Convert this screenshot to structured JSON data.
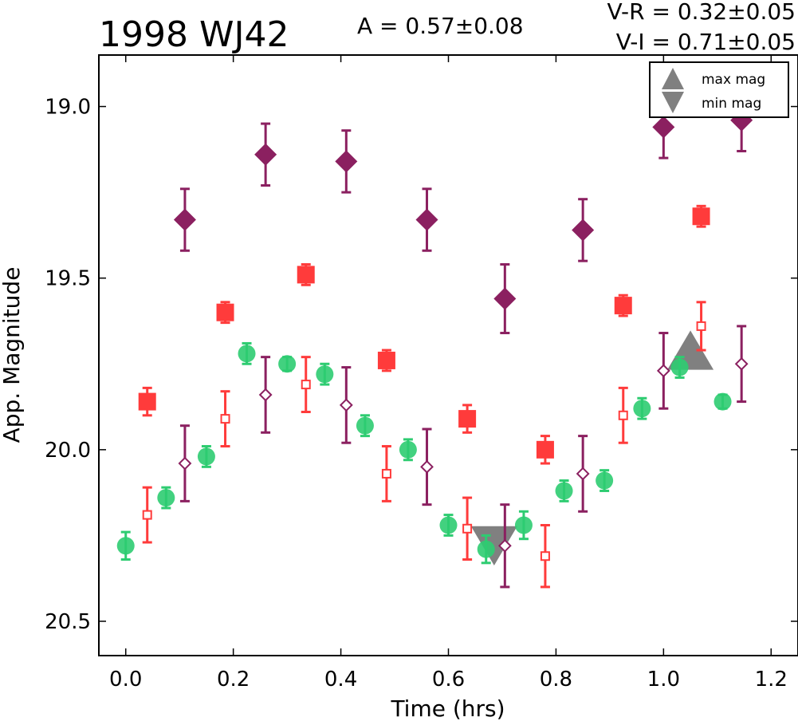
{
  "chart_data": {
    "type": "scatter",
    "title": "1998 WJ42",
    "amplitude_text": "A  = 0.57±0.08",
    "color_index_text": [
      "V-R = 0.32±0.05",
      "V-I  = 0.71±0.05"
    ],
    "xlabel": "Time (hrs)",
    "ylabel": "App. Magnitude",
    "xlim": [
      -0.05,
      1.25
    ],
    "ylim": [
      20.6,
      18.85
    ],
    "y_inverted": true,
    "xticks": [
      0.0,
      0.2,
      0.4,
      0.6,
      0.8,
      1.0,
      1.2
    ],
    "xtick_labels": [
      "0.0",
      "0.2",
      "0.4",
      "0.6",
      "0.8",
      "1.0",
      "1.2"
    ],
    "yticks": [
      19.0,
      19.5,
      20.0,
      20.5
    ],
    "ytick_labels": [
      "19.0",
      "19.5",
      "20.0",
      "20.5"
    ],
    "grid": false,
    "legend": {
      "placement": "top-right",
      "entries": [
        {
          "label": "max mag",
          "marker": "triangle-up",
          "color": "#808080"
        },
        {
          "label": "min mag",
          "marker": "triangle-down",
          "color": "#808080"
        }
      ]
    },
    "series": [
      {
        "marker": "circle",
        "filled": true,
        "color": "#2ecc71",
        "points": [
          {
            "x": 0.0,
            "y": 20.28,
            "err": 0.04
          },
          {
            "x": 0.075,
            "y": 20.14,
            "err": 0.03
          },
          {
            "x": 0.15,
            "y": 20.02,
            "err": 0.03
          },
          {
            "x": 0.225,
            "y": 19.72,
            "err": 0.03
          },
          {
            "x": 0.3,
            "y": 19.75,
            "err": 0.02
          },
          {
            "x": 0.37,
            "y": 19.78,
            "err": 0.03
          },
          {
            "x": 0.445,
            "y": 19.93,
            "err": 0.03
          },
          {
            "x": 0.525,
            "y": 20.0,
            "err": 0.03
          },
          {
            "x": 0.6,
            "y": 20.22,
            "err": 0.03
          },
          {
            "x": 0.67,
            "y": 20.29,
            "err": 0.04
          },
          {
            "x": 0.74,
            "y": 20.22,
            "err": 0.04
          },
          {
            "x": 0.815,
            "y": 20.12,
            "err": 0.03
          },
          {
            "x": 0.89,
            "y": 20.09,
            "err": 0.03
          },
          {
            "x": 0.96,
            "y": 19.88,
            "err": 0.03
          },
          {
            "x": 1.03,
            "y": 19.76,
            "err": 0.03
          },
          {
            "x": 1.11,
            "y": 19.86,
            "err": 0.02
          }
        ]
      },
      {
        "marker": "square",
        "filled": true,
        "color": "#ff3b3b",
        "points": [
          {
            "x": 0.04,
            "y": 19.86,
            "err": 0.04
          },
          {
            "x": 0.185,
            "y": 19.6,
            "err": 0.03
          },
          {
            "x": 0.335,
            "y": 19.49,
            "err": 0.03
          },
          {
            "x": 0.485,
            "y": 19.74,
            "err": 0.03
          },
          {
            "x": 0.635,
            "y": 19.91,
            "err": 0.04
          },
          {
            "x": 0.78,
            "y": 20.0,
            "err": 0.04
          },
          {
            "x": 0.925,
            "y": 19.58,
            "err": 0.03
          },
          {
            "x": 1.07,
            "y": 19.32,
            "err": 0.03
          }
        ]
      },
      {
        "marker": "square",
        "filled": false,
        "color": "#ff3b3b",
        "points": [
          {
            "x": 0.04,
            "y": 20.19,
            "err": 0.08
          },
          {
            "x": 0.185,
            "y": 19.91,
            "err": 0.08
          },
          {
            "x": 0.335,
            "y": 19.81,
            "err": 0.08
          },
          {
            "x": 0.485,
            "y": 20.07,
            "err": 0.08
          },
          {
            "x": 0.635,
            "y": 20.23,
            "err": 0.09
          },
          {
            "x": 0.78,
            "y": 20.31,
            "err": 0.09
          },
          {
            "x": 0.925,
            "y": 19.9,
            "err": 0.08
          },
          {
            "x": 1.07,
            "y": 19.64,
            "err": 0.07
          }
        ]
      },
      {
        "marker": "diamond",
        "filled": true,
        "color": "#8b2060",
        "points": [
          {
            "x": 0.11,
            "y": 19.33,
            "err": 0.09
          },
          {
            "x": 0.26,
            "y": 19.14,
            "err": 0.09
          },
          {
            "x": 0.41,
            "y": 19.16,
            "err": 0.09
          },
          {
            "x": 0.56,
            "y": 19.33,
            "err": 0.09
          },
          {
            "x": 0.705,
            "y": 19.56,
            "err": 0.1
          },
          {
            "x": 0.85,
            "y": 19.36,
            "err": 0.09
          },
          {
            "x": 1.0,
            "y": 19.06,
            "err": 0.09
          },
          {
            "x": 1.145,
            "y": 19.04,
            "err": 0.09
          }
        ]
      },
      {
        "marker": "diamond",
        "filled": false,
        "color": "#8b2060",
        "points": [
          {
            "x": 0.11,
            "y": 20.04,
            "err": 0.11
          },
          {
            "x": 0.26,
            "y": 19.84,
            "err": 0.11
          },
          {
            "x": 0.41,
            "y": 19.87,
            "err": 0.11
          },
          {
            "x": 0.56,
            "y": 20.05,
            "err": 0.11
          },
          {
            "x": 0.705,
            "y": 20.28,
            "err": 0.12
          },
          {
            "x": 0.85,
            "y": 20.07,
            "err": 0.11
          },
          {
            "x": 1.0,
            "y": 19.77,
            "err": 0.11
          },
          {
            "x": 1.145,
            "y": 19.75,
            "err": 0.11
          }
        ]
      }
    ],
    "extrema": [
      {
        "kind": "max mag",
        "marker": "triangle-up",
        "x": 1.05,
        "y": 19.72,
        "color": "#808080"
      },
      {
        "kind": "min mag",
        "marker": "triangle-down",
        "x": 0.685,
        "y": 20.27,
        "color": "#808080"
      }
    ]
  }
}
